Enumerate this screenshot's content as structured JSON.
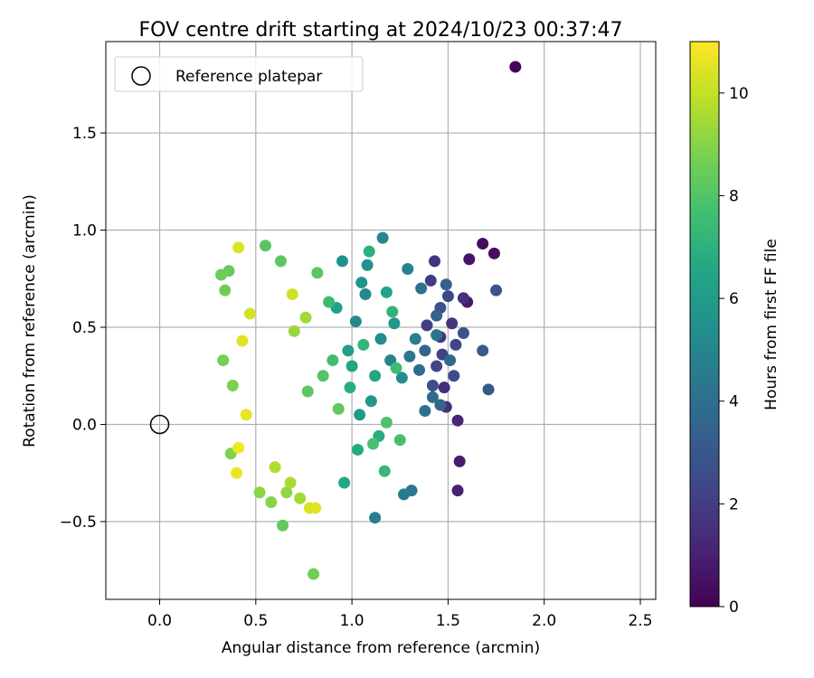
{
  "chart_data": {
    "type": "scatter",
    "title": "FOV centre drift starting at 2024/10/23 00:37:47",
    "xlabel": "Angular distance from reference (arcmin)",
    "ylabel": "Rotation from reference (arcmin)",
    "xlim": [
      -0.28,
      2.58
    ],
    "ylim": [
      -0.9,
      1.97
    ],
    "xticks": [
      0.0,
      0.5,
      1.0,
      1.5,
      2.0,
      2.5
    ],
    "xtick_labels": [
      "0.0",
      "0.5",
      "1.0",
      "1.5",
      "2.0",
      "2.5"
    ],
    "yticks": [
      -0.5,
      0.0,
      0.5,
      1.0,
      1.5
    ],
    "ytick_labels": [
      "−0.5",
      "0.0",
      "0.5",
      "1.0",
      "1.5"
    ],
    "grid": true,
    "legend": {
      "position": "top-left",
      "entries": [
        "Reference platepar"
      ]
    },
    "reference_point": {
      "x": 0.0,
      "y": 0.0,
      "label": "Reference platepar",
      "marker": "open-circle"
    },
    "colorbar": {
      "label": "Hours from first FF file",
      "colormap": "viridis",
      "range": [
        0,
        11
      ],
      "ticks": [
        0,
        2,
        4,
        6,
        8,
        10
      ],
      "tick_labels": [
        "0",
        "2",
        "4",
        "6",
        "8",
        "10"
      ]
    },
    "series": [
      {
        "color_by": "hours",
        "points": [
          {
            "x": 1.85,
            "y": 1.84,
            "c": 0.1
          },
          {
            "x": 1.68,
            "y": 0.93,
            "c": 0.3
          },
          {
            "x": 1.74,
            "y": 0.88,
            "c": 0.4
          },
          {
            "x": 1.61,
            "y": 0.85,
            "c": 0.6
          },
          {
            "x": 1.6,
            "y": 0.63,
            "c": 0.8
          },
          {
            "x": 1.56,
            "y": -0.19,
            "c": 0.9
          },
          {
            "x": 1.55,
            "y": -0.34,
            "c": 1.0
          },
          {
            "x": 1.55,
            "y": 0.02,
            "c": 1.2
          },
          {
            "x": 1.48,
            "y": 0.19,
            "c": 1.3
          },
          {
            "x": 1.49,
            "y": 0.09,
            "c": 1.4
          },
          {
            "x": 1.43,
            "y": 0.84,
            "c": 1.6
          },
          {
            "x": 1.58,
            "y": 0.65,
            "c": 1.5
          },
          {
            "x": 1.52,
            "y": 0.52,
            "c": 1.7
          },
          {
            "x": 1.46,
            "y": 0.45,
            "c": 1.8
          },
          {
            "x": 1.41,
            "y": 0.74,
            "c": 1.9
          },
          {
            "x": 1.39,
            "y": 0.51,
            "c": 2.0
          },
          {
            "x": 1.47,
            "y": 0.36,
            "c": 2.1
          },
          {
            "x": 1.54,
            "y": 0.41,
            "c": 2.2
          },
          {
            "x": 1.44,
            "y": 0.3,
            "c": 2.3
          },
          {
            "x": 1.5,
            "y": 0.66,
            "c": 2.4
          },
          {
            "x": 1.53,
            "y": 0.25,
            "c": 2.5
          },
          {
            "x": 1.42,
            "y": 0.2,
            "c": 2.6
          },
          {
            "x": 1.46,
            "y": 0.6,
            "c": 2.7
          },
          {
            "x": 1.58,
            "y": 0.47,
            "c": 2.8
          },
          {
            "x": 1.75,
            "y": 0.69,
            "c": 2.9
          },
          {
            "x": 1.71,
            "y": 0.18,
            "c": 3.0
          },
          {
            "x": 1.68,
            "y": 0.38,
            "c": 3.2
          },
          {
            "x": 1.49,
            "y": 0.72,
            "c": 3.3
          },
          {
            "x": 1.44,
            "y": 0.56,
            "c": 3.4
          },
          {
            "x": 1.38,
            "y": 0.38,
            "c": 3.5
          },
          {
            "x": 1.46,
            "y": 0.1,
            "c": 3.6
          },
          {
            "x": 1.51,
            "y": 0.33,
            "c": 3.7
          },
          {
            "x": 1.42,
            "y": 0.14,
            "c": 3.8
          },
          {
            "x": 1.35,
            "y": 0.28,
            "c": 3.9
          },
          {
            "x": 1.38,
            "y": 0.07,
            "c": 4.0
          },
          {
            "x": 1.36,
            "y": 0.7,
            "c": 4.1
          },
          {
            "x": 1.44,
            "y": 0.46,
            "c": 4.2
          },
          {
            "x": 1.3,
            "y": 0.35,
            "c": 4.3
          },
          {
            "x": 1.31,
            "y": -0.34,
            "c": 4.4
          },
          {
            "x": 1.27,
            "y": -0.36,
            "c": 4.5
          },
          {
            "x": 1.12,
            "y": -0.48,
            "c": 4.6
          },
          {
            "x": 1.33,
            "y": 0.44,
            "c": 4.7
          },
          {
            "x": 1.2,
            "y": 0.33,
            "c": 4.8
          },
          {
            "x": 1.29,
            "y": 0.8,
            "c": 4.9
          },
          {
            "x": 1.16,
            "y": 0.96,
            "c": 5.0
          },
          {
            "x": 1.07,
            "y": 0.67,
            "c": 5.1
          },
          {
            "x": 1.02,
            "y": 0.53,
            "c": 5.2
          },
          {
            "x": 1.15,
            "y": 0.44,
            "c": 5.3
          },
          {
            "x": 1.26,
            "y": 0.24,
            "c": 5.4
          },
          {
            "x": 1.08,
            "y": 0.82,
            "c": 5.5
          },
          {
            "x": 0.95,
            "y": 0.84,
            "c": 5.6
          },
          {
            "x": 1.05,
            "y": 0.73,
            "c": 5.7
          },
          {
            "x": 1.22,
            "y": 0.52,
            "c": 5.8
          },
          {
            "x": 1.1,
            "y": 0.12,
            "c": 5.9
          },
          {
            "x": 1.04,
            "y": 0.05,
            "c": 6.0
          },
          {
            "x": 0.98,
            "y": 0.38,
            "c": 6.1
          },
          {
            "x": 0.92,
            "y": 0.6,
            "c": 6.2
          },
          {
            "x": 1.18,
            "y": 0.68,
            "c": 6.3
          },
          {
            "x": 1.0,
            "y": 0.3,
            "c": 6.4
          },
          {
            "x": 1.12,
            "y": 0.25,
            "c": 6.5
          },
          {
            "x": 0.96,
            "y": -0.3,
            "c": 6.6
          },
          {
            "x": 1.03,
            "y": -0.13,
            "c": 6.7
          },
          {
            "x": 1.14,
            "y": -0.06,
            "c": 6.8
          },
          {
            "x": 0.99,
            "y": 0.19,
            "c": 6.9
          },
          {
            "x": 1.09,
            "y": 0.89,
            "c": 7.0
          },
          {
            "x": 1.21,
            "y": 0.58,
            "c": 7.1
          },
          {
            "x": 1.06,
            "y": 0.41,
            "c": 7.2
          },
          {
            "x": 1.17,
            "y": -0.24,
            "c": 7.3
          },
          {
            "x": 0.88,
            "y": 0.63,
            "c": 7.4
          },
          {
            "x": 1.23,
            "y": 0.29,
            "c": 7.5
          },
          {
            "x": 0.9,
            "y": 0.33,
            "c": 7.6
          },
          {
            "x": 1.25,
            "y": -0.08,
            "c": 7.7
          },
          {
            "x": 1.11,
            "y": -0.1,
            "c": 7.8
          },
          {
            "x": 1.18,
            "y": 0.01,
            "c": 7.9
          },
          {
            "x": 0.85,
            "y": 0.25,
            "c": 8.0
          },
          {
            "x": 0.82,
            "y": 0.78,
            "c": 8.1
          },
          {
            "x": 0.77,
            "y": 0.17,
            "c": 8.2
          },
          {
            "x": 0.93,
            "y": 0.08,
            "c": 8.3
          },
          {
            "x": 0.55,
            "y": 0.92,
            "c": 8.1
          },
          {
            "x": 0.63,
            "y": 0.84,
            "c": 8.2
          },
          {
            "x": 0.36,
            "y": 0.79,
            "c": 8.4
          },
          {
            "x": 0.32,
            "y": 0.77,
            "c": 8.5
          },
          {
            "x": 0.34,
            "y": 0.69,
            "c": 8.6
          },
          {
            "x": 0.64,
            "y": -0.52,
            "c": 8.3
          },
          {
            "x": 0.8,
            "y": -0.77,
            "c": 8.6
          },
          {
            "x": 0.33,
            "y": 0.33,
            "c": 8.7
          },
          {
            "x": 0.38,
            "y": 0.2,
            "c": 8.8
          },
          {
            "x": 0.37,
            "y": -0.15,
            "c": 8.9
          },
          {
            "x": 0.58,
            "y": -0.4,
            "c": 9.0
          },
          {
            "x": 0.52,
            "y": -0.35,
            "c": 9.1
          },
          {
            "x": 0.66,
            "y": -0.35,
            "c": 9.2
          },
          {
            "x": 0.7,
            "y": 0.48,
            "c": 9.3
          },
          {
            "x": 0.76,
            "y": 0.55,
            "c": 9.4
          },
          {
            "x": 0.73,
            "y": -0.38,
            "c": 9.5
          },
          {
            "x": 0.68,
            "y": -0.3,
            "c": 9.6
          },
          {
            "x": 0.6,
            "y": -0.22,
            "c": 9.7
          },
          {
            "x": 0.41,
            "y": 0.91,
            "c": 10.4
          },
          {
            "x": 0.43,
            "y": 0.43,
            "c": 10.5
          },
          {
            "x": 0.45,
            "y": 0.05,
            "c": 10.6
          },
          {
            "x": 0.4,
            "y": -0.25,
            "c": 10.7
          },
          {
            "x": 0.41,
            "y": -0.12,
            "c": 10.8
          },
          {
            "x": 0.78,
            "y": -0.43,
            "c": 10.4
          },
          {
            "x": 0.81,
            "y": -0.43,
            "c": 10.5
          },
          {
            "x": 0.69,
            "y": 0.67,
            "c": 10.2
          },
          {
            "x": 0.47,
            "y": 0.57,
            "c": 10.3
          }
        ]
      }
    ]
  }
}
